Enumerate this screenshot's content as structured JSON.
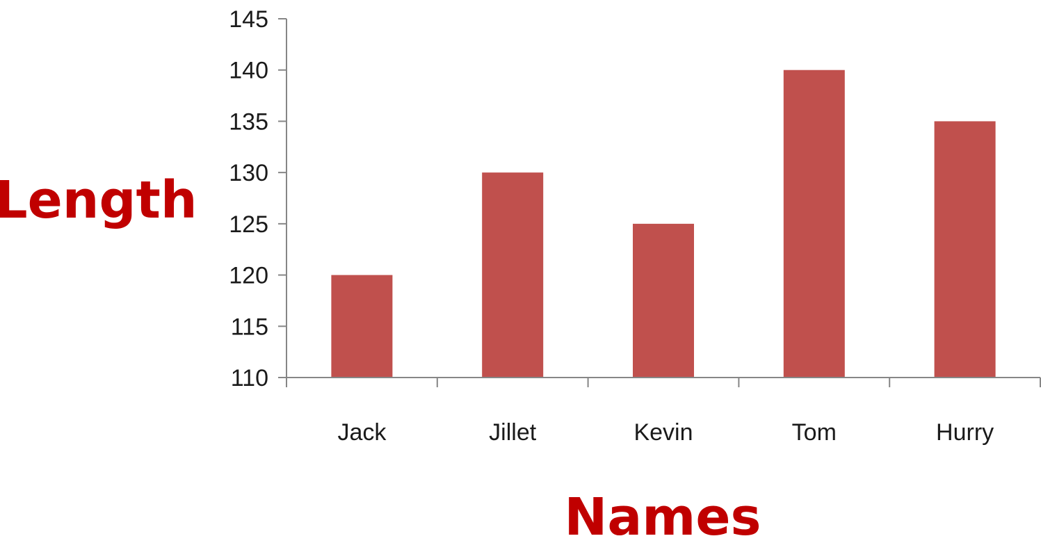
{
  "chart_data": {
    "type": "bar",
    "categories": [
      "Jack",
      "Jillet",
      "Kevin",
      "Tom",
      "Hurry"
    ],
    "values": [
      120,
      130,
      125,
      140,
      135
    ],
    "xlabel": "Names",
    "ylabel": "Length",
    "ylim": [
      110,
      145
    ],
    "yticks": [
      110,
      115,
      120,
      125,
      130,
      135,
      140,
      145
    ],
    "grid": false,
    "legend": "none",
    "colors": {
      "bar": "#C0504D",
      "axis": "#868686",
      "title": "#C00000"
    }
  }
}
